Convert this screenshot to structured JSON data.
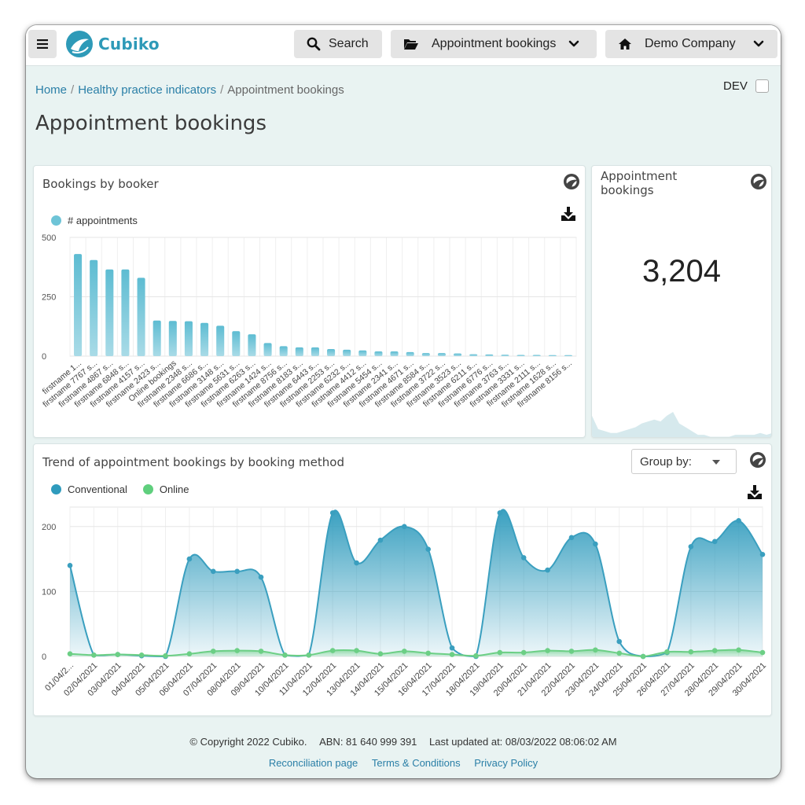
{
  "app": {
    "name": "Cubiko"
  },
  "header": {
    "search_label": "Search",
    "report_label": "Appointment bookings",
    "company_label": "Demo Company"
  },
  "breadcrumb": {
    "home": "Home",
    "section": "Healthy practice indicators",
    "current": "Appointment bookings"
  },
  "dev_label": "DEV",
  "page_title": "Appointment bookings",
  "bookings_by_booker": {
    "title": "Bookings by booker",
    "legend": "# appointments"
  },
  "kpi": {
    "title": "Appointment bookings",
    "value": "3,204",
    "sparkline": [
      12,
      5,
      4,
      3,
      3,
      4,
      5,
      6,
      8,
      9,
      10,
      9,
      12,
      14,
      8,
      6,
      4,
      2,
      2,
      1,
      1,
      1,
      1,
      2,
      2,
      2,
      2,
      3,
      2,
      3
    ]
  },
  "trend": {
    "title": "Trend of appointment bookings by booking method",
    "group_by_label": "Group by:",
    "legend": [
      "Conventional",
      "Online"
    ]
  },
  "chart_data": [
    {
      "type": "bar",
      "title": "Bookings by booker",
      "ylim": [
        0,
        500
      ],
      "yticks": [
        0,
        250,
        500
      ],
      "color": "#5dbcd2",
      "categories": [
        "firstname 1...",
        "firstname 7767 s...",
        "firstname 4867 s...",
        "firstname 6848 s...",
        "firstname 4157 s...",
        "firstname 2423 s...",
        "Online bookings",
        "firstname 2348 s...",
        "firstname 6686 s...",
        "firstname 3148 s...",
        "firstname 5631 s...",
        "firstname 6263 s...",
        "firstname 1424 s...",
        "firstname 8756 s...",
        "firstname 8183 s...",
        "firstname 6443 s...",
        "firstname 2253 s...",
        "firstname 6232 s...",
        "firstname 4412 s...",
        "firstname 5454 s...",
        "firstname 2341 s...",
        "firstname 4671 s...",
        "firstname 8584 s...",
        "firstname 3722 s...",
        "firstname 3523 s...",
        "firstname 6211 s...",
        "firstname 6776 s...",
        "firstname 3763 s...",
        "firstname 3331 s...",
        "firstname 2111 s...",
        "firstname 1628 s...",
        "firstname 8156 s..."
      ],
      "series": [
        {
          "name": "# appointments",
          "values": [
            430,
            405,
            365,
            365,
            330,
            150,
            148,
            147,
            140,
            128,
            105,
            92,
            55,
            42,
            37,
            37,
            30,
            27,
            24,
            20,
            20,
            17,
            13,
            13,
            11,
            8,
            7,
            6,
            5,
            5,
            4,
            4
          ]
        }
      ]
    },
    {
      "type": "area",
      "title": "Trend of appointment bookings by booking method",
      "ylim": [
        0,
        230
      ],
      "yticks": [
        0,
        100,
        200
      ],
      "x": [
        "01/04/2...",
        "02/04/2021",
        "03/04/2021",
        "04/04/2021",
        "05/04/2021",
        "06/04/2021",
        "07/04/2021",
        "08/04/2021",
        "09/04/2021",
        "10/04/2021",
        "11/04/2021",
        "12/04/2021",
        "13/04/2021",
        "14/04/2021",
        "15/04/2021",
        "16/04/2021",
        "17/04/2021",
        "18/04/2021",
        "19/04/2021",
        "20/04/2021",
        "21/04/2021",
        "22/04/2021",
        "23/04/2021",
        "24/04/2021",
        "25/04/2021",
        "26/04/2021",
        "27/04/2021",
        "28/04/2021",
        "29/04/2021",
        "30/04/2021"
      ],
      "series": [
        {
          "name": "Conventional",
          "color": "#3a9fbf",
          "values": [
            140,
            2,
            3,
            1,
            0,
            150,
            131,
            131,
            122,
            2,
            2,
            221,
            144,
            179,
            200,
            165,
            13,
            0,
            221,
            152,
            133,
            183,
            173,
            23,
            0,
            6,
            169,
            177,
            209,
            157
          ]
        },
        {
          "name": "Online",
          "color": "#6ccf85",
          "values": [
            4,
            2,
            3,
            2,
            1,
            4,
            8,
            9,
            8,
            2,
            2,
            9,
            9,
            4,
            8,
            5,
            3,
            1,
            6,
            6,
            9,
            8,
            10,
            5,
            0,
            7,
            7,
            9,
            10,
            6
          ]
        }
      ]
    }
  ],
  "footer": {
    "copyright": "© Copyright 2022 Cubiko.",
    "abn": "ABN: 81 640 999 391",
    "updated": "Last updated at: 08/03/2022 08:06:02 AM",
    "links": [
      "Reconciliation page",
      "Terms & Conditions",
      "Privacy Policy"
    ]
  }
}
